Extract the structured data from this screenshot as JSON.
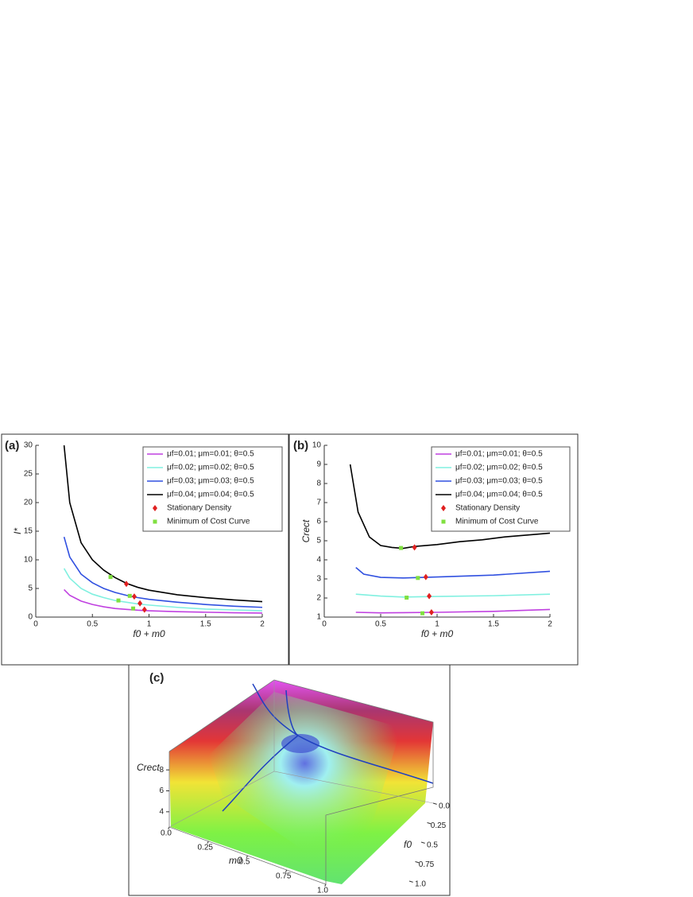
{
  "chart_data": [
    {
      "type": "line",
      "panel": "(a)",
      "ylabel": "I*",
      "xlabel": "f0 + m0",
      "xlim": [
        0,
        2
      ],
      "ylim": [
        0,
        30
      ],
      "xticks": [
        0,
        0.5,
        1,
        1.5,
        2
      ],
      "yticks": [
        0,
        5,
        10,
        15,
        20,
        25,
        30
      ],
      "series": [
        {
          "name": "μf=0.01; μm=0.01; θ=0.5",
          "color": "#c040e0",
          "style": "line",
          "x": [
            0.25,
            0.3,
            0.4,
            0.5,
            0.6,
            0.7,
            0.8,
            0.9,
            1.0,
            1.25,
            1.5,
            1.75,
            2
          ],
          "values": [
            4.8,
            3.8,
            2.8,
            2.2,
            1.8,
            1.5,
            1.35,
            1.2,
            1.1,
            0.95,
            0.85,
            0.75,
            0.7
          ]
        },
        {
          "name": "μf=0.02; μm=0.02; θ=0.5",
          "color": "#80f0e0",
          "style": "line",
          "x": [
            0.25,
            0.3,
            0.4,
            0.5,
            0.6,
            0.7,
            0.8,
            0.9,
            1.0,
            1.25,
            1.5,
            1.75,
            2
          ],
          "values": [
            8.5,
            6.8,
            5,
            4,
            3.4,
            2.9,
            2.6,
            2.3,
            2.1,
            1.7,
            1.4,
            1.25,
            1.1
          ]
        },
        {
          "name": "μf=0.03; μm=0.03; θ=0.5",
          "color": "#3050e0",
          "style": "line",
          "x": [
            0.25,
            0.3,
            0.4,
            0.5,
            0.6,
            0.7,
            0.8,
            0.9,
            1.0,
            1.25,
            1.5,
            1.75,
            2
          ],
          "values": [
            14,
            10.5,
            7.5,
            6,
            5,
            4.3,
            3.8,
            3.4,
            3.1,
            2.6,
            2.2,
            1.9,
            1.7
          ]
        },
        {
          "name": "μf=0.04; μm=0.04; θ=0.5",
          "color": "#000000",
          "style": "line",
          "x": [
            0.25,
            0.3,
            0.4,
            0.5,
            0.6,
            0.7,
            0.8,
            0.9,
            1.0,
            1.25,
            1.5,
            1.75,
            2
          ],
          "values": [
            30,
            20,
            13,
            10,
            8.2,
            6.9,
            5.9,
            5.2,
            4.7,
            3.9,
            3.4,
            3.0,
            2.7
          ]
        },
        {
          "name": "Stationary Density",
          "color": "#e02020",
          "style": "diamond",
          "x": [
            0.8,
            0.87,
            0.92,
            0.96
          ],
          "values": [
            5.8,
            3.6,
            2.4,
            1.3
          ]
        },
        {
          "name": "Minimum of Cost Curve",
          "color": "#80e040",
          "style": "square",
          "x": [
            0.66,
            0.83,
            0.73,
            0.86
          ],
          "values": [
            7,
            3.7,
            2.9,
            1.5
          ]
        }
      ]
    },
    {
      "type": "line",
      "panel": "(b)",
      "ylabel": "Crect",
      "xlabel": "f0 + m0",
      "xlim": [
        0,
        2
      ],
      "ylim": [
        1,
        10
      ],
      "xticks": [
        0,
        0.5,
        1,
        1.5,
        2
      ],
      "yticks": [
        1,
        2,
        3,
        4,
        5,
        6,
        7,
        8,
        9,
        10
      ],
      "series": [
        {
          "name": "μf=0.01; μm=0.01; θ=0.5",
          "color": "#c040e0",
          "style": "line",
          "x": [
            0.28,
            0.5,
            1.0,
            1.5,
            2
          ],
          "values": [
            1.25,
            1.22,
            1.25,
            1.3,
            1.4
          ]
        },
        {
          "name": "μf=0.02; μm=0.02; θ=0.5",
          "color": "#80f0e0",
          "style": "line",
          "x": [
            0.28,
            0.5,
            0.7,
            1.0,
            1.5,
            2
          ],
          "values": [
            2.2,
            2.1,
            2.05,
            2.08,
            2.12,
            2.2
          ]
        },
        {
          "name": "μf=0.03; μm=0.03; θ=0.5",
          "color": "#3050e0",
          "style": "line",
          "x": [
            0.28,
            0.35,
            0.5,
            0.7,
            1.0,
            1.5,
            2
          ],
          "values": [
            3.6,
            3.25,
            3.08,
            3.05,
            3.1,
            3.2,
            3.4
          ]
        },
        {
          "name": "μf=0.04; μm=0.04; θ=0.5",
          "color": "#000000",
          "style": "line",
          "x": [
            0.23,
            0.3,
            0.4,
            0.5,
            0.6,
            0.7,
            0.8,
            1.0,
            1.2,
            1.4,
            1.6,
            1.8,
            2.0
          ],
          "values": [
            9,
            6.5,
            5.2,
            4.75,
            4.65,
            4.6,
            4.7,
            4.8,
            4.95,
            5.05,
            5.2,
            5.3,
            5.4
          ]
        },
        {
          "name": "Stationary Density",
          "color": "#e02020",
          "style": "diamond",
          "x": [
            0.8,
            0.9,
            0.93,
            0.95
          ],
          "values": [
            4.65,
            3.1,
            2.1,
            1.25
          ]
        },
        {
          "name": "Minimum of Cost Curve",
          "color": "#80e040",
          "style": "square",
          "x": [
            0.68,
            0.83,
            0.73,
            0.87
          ],
          "values": [
            4.62,
            3.05,
            2.02,
            1.2
          ]
        }
      ]
    },
    {
      "type": "surface3d",
      "panel": "(c)",
      "zlabel": "Crect",
      "xlabel": "m0",
      "ylabel": "f0",
      "zlim": [
        3,
        9
      ],
      "zticks": [
        4,
        6,
        8
      ],
      "xlim": [
        0,
        1.0
      ],
      "xticks": [
        {
          "value": 0,
          "label": "0.0"
        },
        0.25,
        0.5,
        0.75,
        {
          "value": 1,
          "label": "1.0"
        }
      ],
      "ylim": [
        0,
        1.0
      ],
      "yticks": [
        {
          "value": 0,
          "label": "0.0"
        },
        0.25,
        0.5,
        0.75,
        {
          "value": 1,
          "label": "1.0"
        }
      ]
    }
  ]
}
